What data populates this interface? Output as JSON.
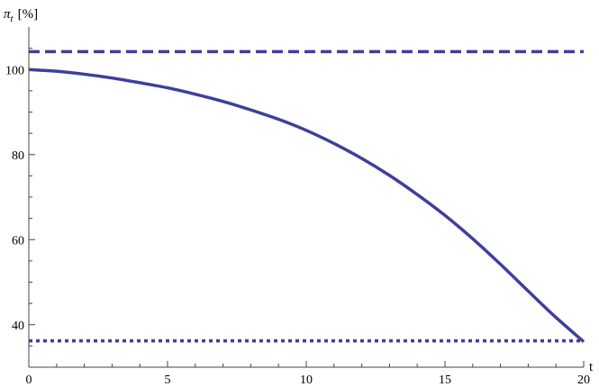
{
  "chart_data": {
    "type": "line",
    "ylabel_symbol": "π",
    "ylabel_subscript": "t",
    "ylabel_unit": "[%]",
    "xlabel": "t",
    "xlim": [
      0,
      20
    ],
    "ylim": [
      30,
      110
    ],
    "x_ticks": [
      0,
      5,
      10,
      15,
      20
    ],
    "y_ticks": [
      40,
      60,
      80,
      100
    ],
    "grid": false,
    "color": "#3f3f9a",
    "series": [
      {
        "style": "solid",
        "x": [
          0,
          1,
          2,
          3,
          4,
          5,
          6,
          7,
          8,
          9,
          10,
          11,
          12,
          13,
          14,
          15,
          16,
          17,
          18,
          19,
          20
        ],
        "y": [
          100,
          99.6,
          98.9,
          98.0,
          96.9,
          95.7,
          94.2,
          92.5,
          90.5,
          88.3,
          85.7,
          82.6,
          79.1,
          75.1,
          70.6,
          65.7,
          60.2,
          54.2,
          47.9,
          41.7,
          36.0
        ]
      },
      {
        "style": "dashed",
        "x": [
          0,
          20
        ],
        "y": [
          104.2,
          104.2
        ]
      },
      {
        "style": "dotted",
        "x": [
          0,
          20
        ],
        "y": [
          36.2,
          36.2
        ]
      }
    ]
  }
}
